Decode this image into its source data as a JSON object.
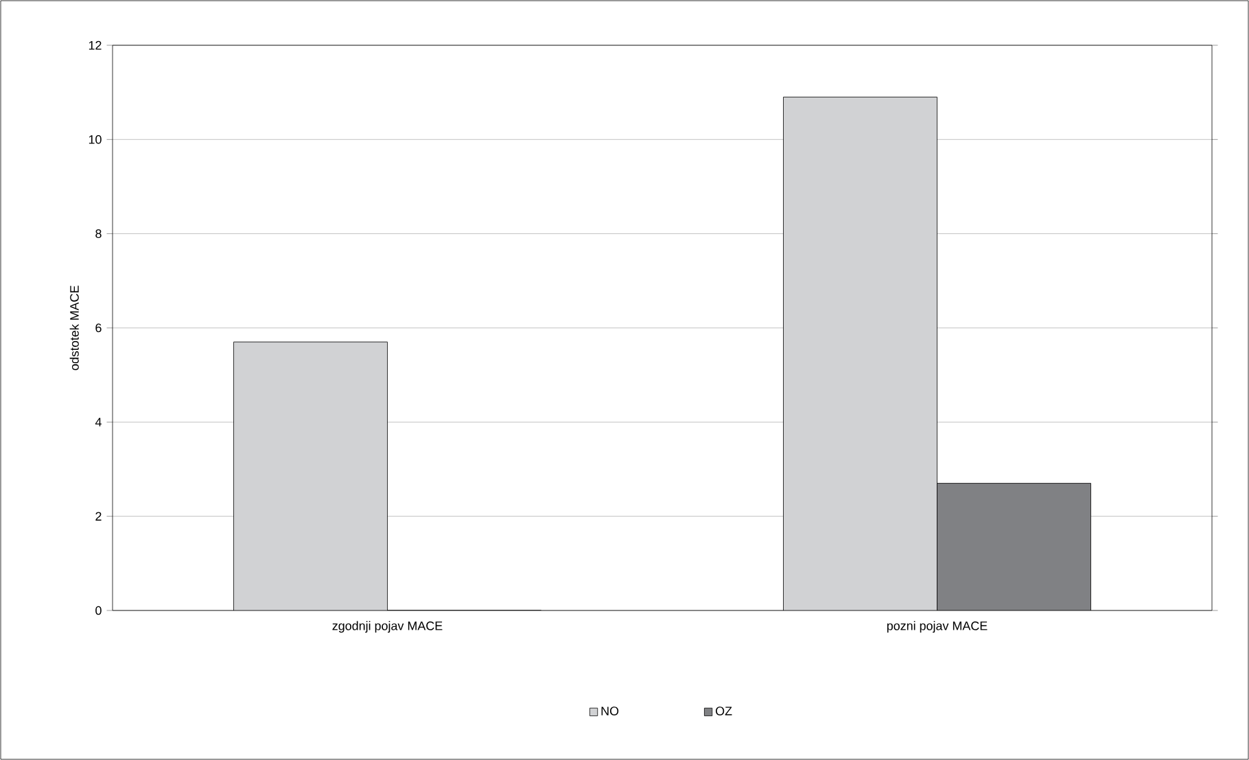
{
  "chart_data": {
    "type": "bar",
    "ylabel": "odstotek MACE",
    "categories": [
      "zgodnji pojav MACE",
      "pozni pojav MACE"
    ],
    "series": [
      {
        "name": "NO",
        "color": "#d1d2d4",
        "values": [
          5.7,
          10.9
        ]
      },
      {
        "name": "OZ",
        "color": "#808184",
        "values": [
          0,
          2.7
        ]
      }
    ],
    "ylim": [
      0,
      12
    ],
    "yticks": [
      0,
      2,
      4,
      6,
      8,
      10,
      12
    ],
    "grid": "y",
    "legend": "bottom"
  }
}
